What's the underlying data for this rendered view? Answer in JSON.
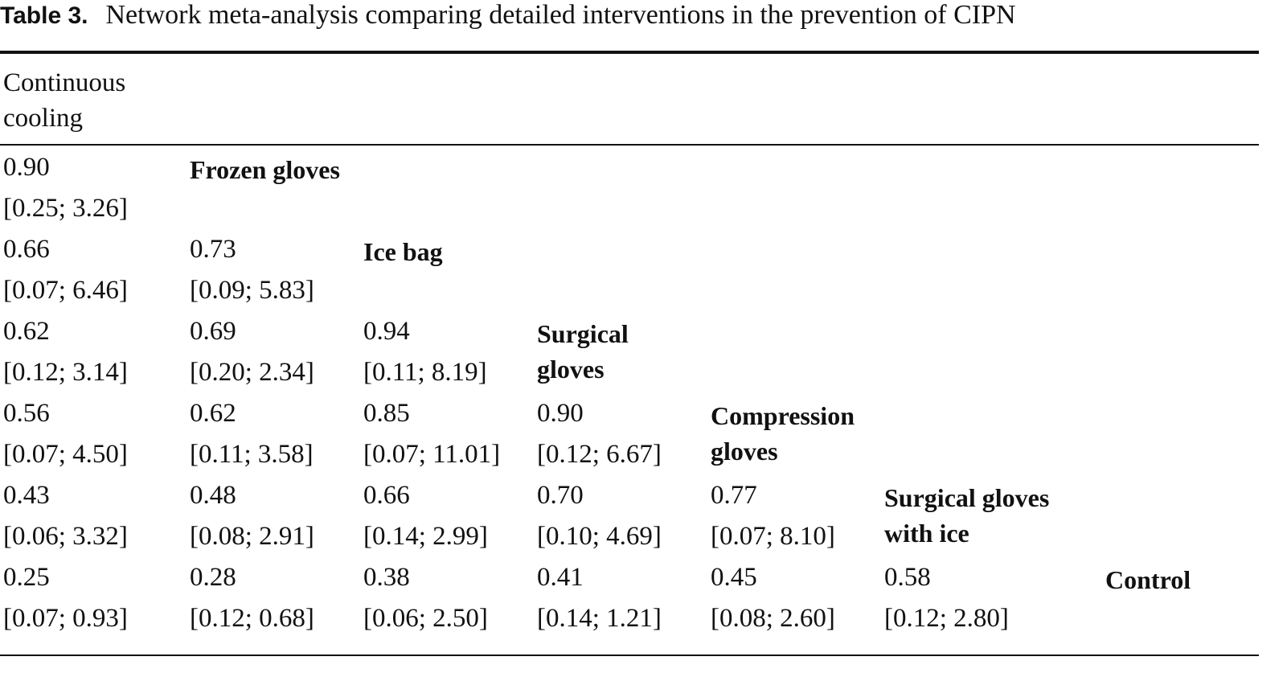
{
  "caption": {
    "label": "Table 3.",
    "text": "Network meta-analysis comparing detailed interventions in the prevention of CIPN"
  },
  "header": {
    "line1": "Continuous",
    "line2": "cooling"
  },
  "diagonal": [
    {
      "line1": "Frozen gloves",
      "line2": ""
    },
    {
      "line1": "Ice bag",
      "line2": ""
    },
    {
      "line1": "Surgical",
      "line2": "gloves"
    },
    {
      "line1": "Compression",
      "line2": "gloves"
    },
    {
      "line1": "Surgical gloves",
      "line2": "with ice"
    },
    {
      "line1": "Control",
      "line2": ""
    }
  ],
  "rows": [
    [
      {
        "est": "0.90",
        "ci": "[0.25; 3.26]"
      }
    ],
    [
      {
        "est": "0.66",
        "ci": "[0.07; 6.46]"
      },
      {
        "est": "0.73",
        "ci": "[0.09; 5.83]"
      }
    ],
    [
      {
        "est": "0.62",
        "ci": "[0.12; 3.14]"
      },
      {
        "est": "0.69",
        "ci": "[0.20; 2.34]"
      },
      {
        "est": "0.94",
        "ci": "[0.11; 8.19]"
      }
    ],
    [
      {
        "est": "0.56",
        "ci": "[0.07; 4.50]"
      },
      {
        "est": "0.62",
        "ci": "[0.11; 3.58]"
      },
      {
        "est": "0.85",
        "ci": "[0.07; 11.01]"
      },
      {
        "est": "0.90",
        "ci": "[0.12; 6.67]"
      }
    ],
    [
      {
        "est": "0.43",
        "ci": "[0.06; 3.32]"
      },
      {
        "est": "0.48",
        "ci": "[0.08; 2.91]"
      },
      {
        "est": "0.66",
        "ci": "[0.14; 2.99]"
      },
      {
        "est": "0.70",
        "ci": "[0.10; 4.69]"
      },
      {
        "est": "0.77",
        "ci": "[0.07; 8.10]"
      }
    ],
    [
      {
        "est": "0.25",
        "ci": "[0.07; 0.93]"
      },
      {
        "est": "0.28",
        "ci": "[0.12; 0.68]"
      },
      {
        "est": "0.38",
        "ci": "[0.06; 2.50]"
      },
      {
        "est": "0.41",
        "ci": "[0.14; 1.21]"
      },
      {
        "est": "0.45",
        "ci": "[0.08; 2.60]"
      },
      {
        "est": "0.58",
        "ci": "[0.12; 2.80]"
      }
    ]
  ]
}
